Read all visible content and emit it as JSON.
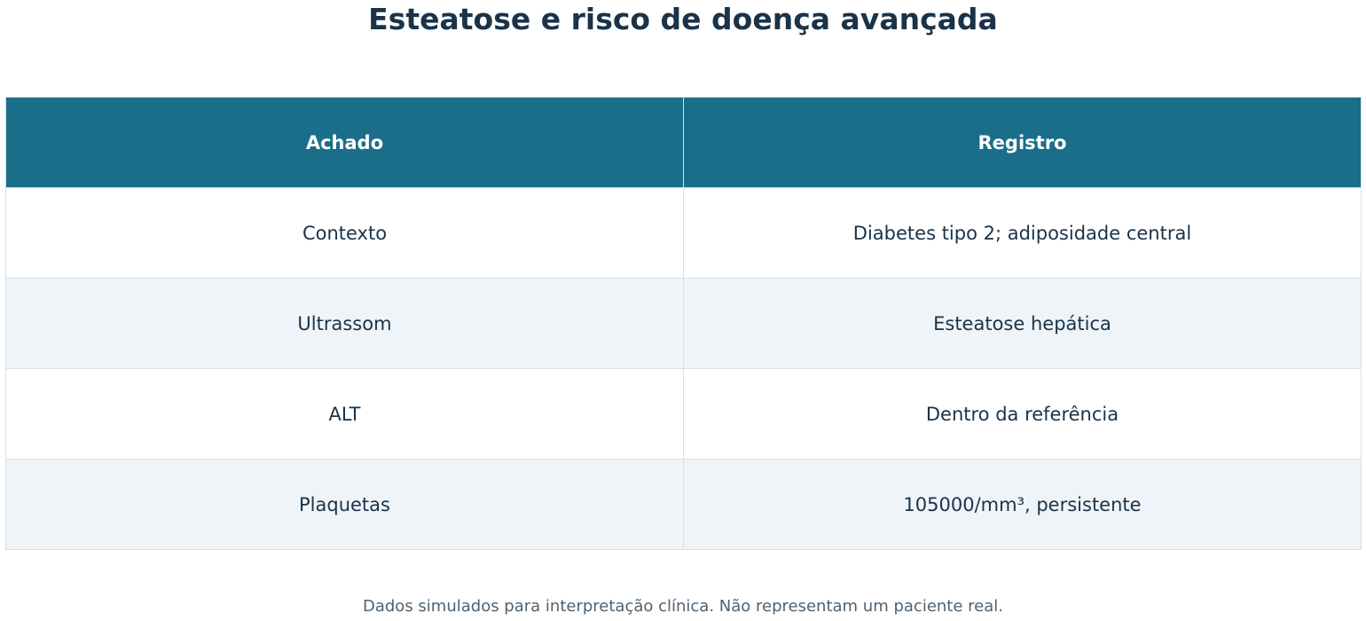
{
  "title": "Esteatose e risco de doença avançada",
  "chart_data": {
    "type": "table",
    "title": "Esteatose e risco de doença avançada",
    "columns": [
      "Achado",
      "Registro"
    ],
    "rows": [
      [
        "Contexto",
        "Diabetes tipo 2; adiposidade central"
      ],
      [
        "Ultrassom",
        "Esteatose hepática"
      ],
      [
        "ALT",
        "Dentro da referência"
      ],
      [
        "Plaquetas",
        "105000/mm³, persistente"
      ]
    ]
  },
  "footnote": "Dados simulados para interpretação clínica. Não representam um paciente real.",
  "colors": {
    "header_bg": "#1a6e89",
    "header_text": "#ffffff",
    "title_text": "#1a3349",
    "row_alt_bg": "#eef4f8",
    "border": "#d5e1e9"
  }
}
